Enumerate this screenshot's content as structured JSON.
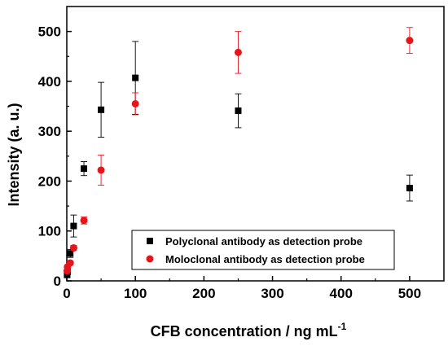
{
  "chart_data": {
    "type": "scatter",
    "xlabel": "CFB concentration / ng mL",
    "xlabel_superscript": "-1",
    "ylabel": "Intensity (a. u.)",
    "xlim": [
      0,
      550
    ],
    "ylim": [
      0,
      550
    ],
    "xticks": [
      "0",
      "100",
      "200",
      "300",
      "400",
      "500"
    ],
    "yticks": [
      "0",
      "100",
      "200",
      "300",
      "400",
      "500"
    ],
    "grid": false,
    "legend_position": "bottom-right",
    "series": [
      {
        "name": "Polyclonal antibody as detection probe",
        "color": "#000000",
        "marker": "square",
        "points": [
          {
            "x": 0.5,
            "y": 12,
            "err": 2
          },
          {
            "x": 1,
            "y": 18,
            "err": 3
          },
          {
            "x": 5,
            "y": 55,
            "err": 8
          },
          {
            "x": 10,
            "y": 110,
            "err": 22
          },
          {
            "x": 25,
            "y": 225,
            "err": 14
          },
          {
            "x": 50,
            "y": 343,
            "err": 55
          },
          {
            "x": 100,
            "y": 407,
            "err": 73
          },
          {
            "x": 250,
            "y": 341,
            "err": 34
          },
          {
            "x": 500,
            "y": 186,
            "err": 26
          }
        ]
      },
      {
        "name": "Moloclonal antibody as detection probe",
        "color": "#e8141b",
        "marker": "circle",
        "points": [
          {
            "x": 0.5,
            "y": 20,
            "err": 2
          },
          {
            "x": 1,
            "y": 28,
            "err": 3
          },
          {
            "x": 5,
            "y": 36,
            "err": 4
          },
          {
            "x": 10,
            "y": 66,
            "err": 5
          },
          {
            "x": 25,
            "y": 121,
            "err": 7
          },
          {
            "x": 50,
            "y": 222,
            "err": 30
          },
          {
            "x": 100,
            "y": 355,
            "err": 22
          },
          {
            "x": 250,
            "y": 458,
            "err": 42
          },
          {
            "x": 500,
            "y": 482,
            "err": 26
          }
        ]
      }
    ]
  }
}
